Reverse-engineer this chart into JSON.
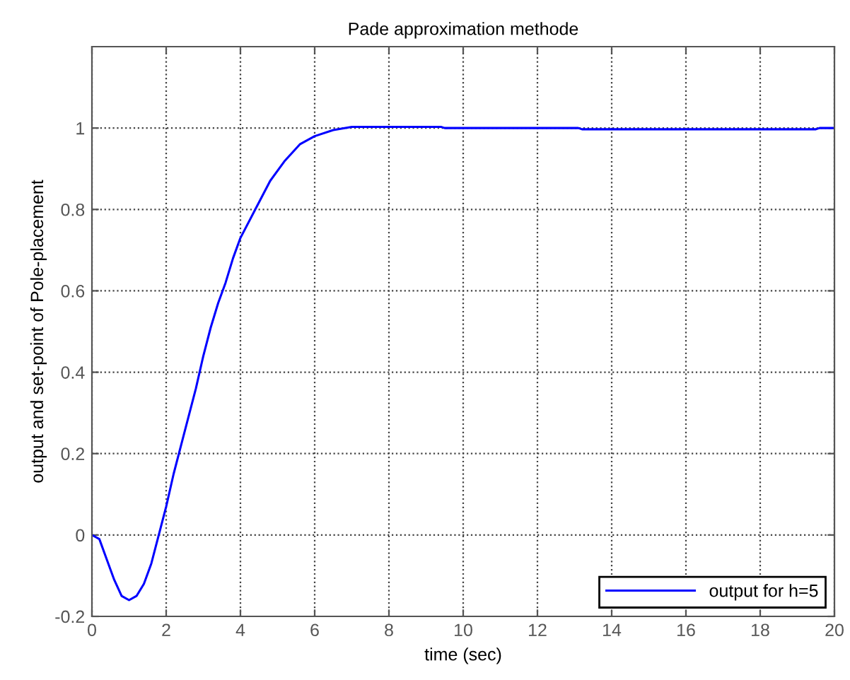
{
  "chart_data": {
    "type": "line",
    "title": "Pade approximation methode",
    "xlabel": "time (sec)",
    "ylabel": "output and set-point of Pole-placement",
    "xlim": [
      0,
      20
    ],
    "ylim": [
      -0.2,
      1.2
    ],
    "xticks": [
      0,
      2,
      4,
      6,
      8,
      10,
      12,
      14,
      16,
      18,
      20
    ],
    "yticks": [
      -0.2,
      0,
      0.2,
      0.4,
      0.6,
      0.8,
      1
    ],
    "grid": true,
    "legend": "bottom right",
    "line_style": "solid",
    "series": [
      {
        "name": "output for h=5",
        "color": "#0000ff",
        "x": [
          0,
          0.2,
          0.4,
          0.6,
          0.8,
          1.0,
          1.2,
          1.4,
          1.6,
          1.8,
          2.0,
          2.2,
          2.4,
          2.6,
          2.8,
          3.0,
          3.2,
          3.4,
          3.6,
          3.8,
          4.0,
          4.4,
          4.8,
          5.2,
          5.6,
          6.0,
          6.5,
          7.0,
          9.4,
          9.5,
          13.1,
          13.2,
          19.5,
          19.6,
          20
        ],
        "values": [
          0,
          -0.01,
          -0.06,
          -0.11,
          -0.15,
          -0.16,
          -0.15,
          -0.12,
          -0.07,
          0.0,
          0.07,
          0.15,
          0.22,
          0.29,
          0.36,
          0.44,
          0.51,
          0.57,
          0.62,
          0.68,
          0.73,
          0.8,
          0.87,
          0.92,
          0.96,
          0.98,
          0.995,
          1.003,
          1.003,
          1.0,
          1.0,
          0.997,
          0.997,
          1.0,
          1.0
        ]
      }
    ]
  }
}
